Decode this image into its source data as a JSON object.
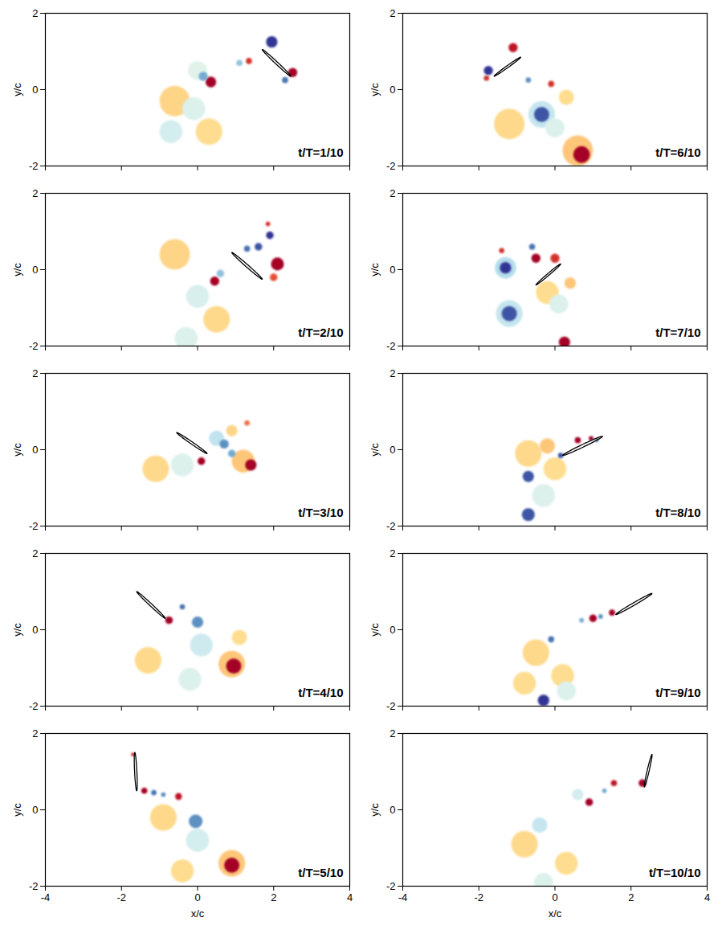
{
  "chart_data": [
    {
      "type": "vorticity",
      "title": "t/T=1/10",
      "y_label": "y/c",
      "tick_labels": "y",
      "xlim": [
        -4,
        4
      ],
      "ylim": [
        -2,
        2
      ],
      "xticks": [
        -4,
        -2,
        0,
        2,
        4
      ],
      "yticks": [
        -2,
        0,
        2
      ],
      "vorticity_range": [
        -5,
        5
      ],
      "airfoil": {
        "x": [
          1.7,
          2.45
        ],
        "y": [
          1.05,
          0.35
        ]
      },
      "vortices": {
        "x": [
          -0.6,
          -0.7,
          0.3,
          -0.1,
          0.0,
          0.15,
          0.35,
          1.1,
          1.35,
          1.95,
          2.5,
          2.3
        ],
        "y": [
          -0.3,
          -1.1,
          -1.1,
          -0.5,
          0.5,
          0.35,
          0.2,
          0.7,
          0.75,
          1.25,
          0.45,
          0.25
        ],
        "radius": [
          0.4,
          0.3,
          0.35,
          0.3,
          0.25,
          0.12,
          0.14,
          0.08,
          0.08,
          0.15,
          0.12,
          0.08
        ],
        "vorticity": [
          1.2,
          -1.2,
          1.0,
          -1.0,
          -0.9,
          -3.0,
          5,
          -2.5,
          4,
          -5,
          5,
          -4
        ]
      }
    },
    {
      "type": "vorticity",
      "title": "t/T=2/10",
      "y_label": "y/c",
      "tick_labels": "y",
      "xlim": [
        -4,
        4
      ],
      "ylim": [
        -2,
        2
      ],
      "xticks": [
        -4,
        -2,
        0,
        2,
        4
      ],
      "yticks": [
        -2,
        0,
        2
      ],
      "vorticity_range": [
        -5,
        5
      ],
      "airfoil": {
        "x": [
          0.9,
          1.7
        ],
        "y": [
          0.45,
          -0.25
        ]
      },
      "vortices": {
        "x": [
          -0.6,
          0.5,
          0.0,
          -0.3,
          0.6,
          0.45,
          1.6,
          1.9,
          1.85,
          2.0,
          2.1,
          1.3
        ],
        "y": [
          0.4,
          -1.3,
          -0.7,
          -1.8,
          -0.1,
          -0.3,
          0.6,
          0.9,
          1.2,
          -0.2,
          0.15,
          0.55
        ],
        "radius": [
          0.4,
          0.35,
          0.3,
          0.3,
          0.1,
          0.12,
          0.1,
          0.1,
          0.06,
          0.1,
          0.17,
          0.08
        ],
        "vorticity": [
          1.2,
          1.1,
          -1.1,
          -1.0,
          -2.5,
          5,
          -4.5,
          -5,
          4,
          3.5,
          5,
          -4
        ]
      }
    },
    {
      "type": "vorticity",
      "title": "t/T=3/10",
      "y_label": "y/c",
      "tick_labels": "y",
      "xlim": [
        -4,
        4
      ],
      "ylim": [
        -2,
        2
      ],
      "xticks": [
        -4,
        -2,
        0,
        2,
        4
      ],
      "yticks": [
        -2,
        0,
        2
      ],
      "vorticity_range": [
        -5,
        5
      ],
      "airfoil": {
        "x": [
          -0.55,
          0.25
        ],
        "y": [
          0.45,
          -0.1
        ]
      },
      "vortices": {
        "x": [
          -1.1,
          -0.4,
          1.2,
          0.5,
          0.9,
          0.1,
          0.7,
          0.9,
          1.4,
          1.3
        ],
        "y": [
          -0.5,
          -0.4,
          -0.3,
          0.3,
          0.5,
          -0.3,
          0.15,
          -0.1,
          -0.4,
          0.7
        ],
        "radius": [
          0.35,
          0.3,
          0.3,
          0.2,
          0.15,
          0.1,
          0.12,
          0.1,
          0.15,
          0.07
        ],
        "vorticity": [
          1.1,
          -1.0,
          1.5,
          -1.6,
          1.2,
          5,
          -3.5,
          -3,
          5,
          3
        ]
      }
    },
    {
      "type": "vorticity",
      "title": "t/T=4/10",
      "y_label": "y/c",
      "tick_labels": "y",
      "xlim": [
        -4,
        4
      ],
      "ylim": [
        -2,
        2
      ],
      "xticks": [
        -4,
        -2,
        0,
        2,
        4
      ],
      "yticks": [
        -2,
        0,
        2
      ],
      "vorticity_range": [
        -5,
        5
      ],
      "airfoil": {
        "x": [
          -1.6,
          -0.85
        ],
        "y": [
          1.0,
          0.3
        ]
      },
      "vortices": {
        "x": [
          -1.3,
          -0.2,
          0.1,
          0.9,
          1.1,
          -0.75,
          -0.4,
          0.0,
          0.95
        ],
        "y": [
          -0.8,
          -1.3,
          -0.4,
          -0.9,
          -0.2,
          0.25,
          0.6,
          0.2,
          -0.95
        ],
        "radius": [
          0.35,
          0.3,
          0.3,
          0.35,
          0.2,
          0.1,
          0.07,
          0.15,
          0.2
        ],
        "vorticity": [
          1.1,
          -1.0,
          -1.3,
          1.5,
          1.0,
          5,
          -4,
          -3.5,
          5
        ]
      }
    },
    {
      "type": "vorticity",
      "title": "t/T=5/10",
      "x_label": "x/c",
      "y_label": "y/c",
      "xlim": [
        -4,
        4
      ],
      "ylim": [
        -2,
        2
      ],
      "xticks": [
        -4,
        -2,
        0,
        2,
        4
      ],
      "yticks": [
        -2,
        0,
        2
      ],
      "vorticity_range": [
        -5,
        5
      ],
      "airfoil": {
        "x": [
          -1.65,
          -1.6
        ],
        "y": [
          1.5,
          0.5
        ]
      },
      "vortices": {
        "x": [
          -0.9,
          0,
          0.9,
          -0.4,
          -1.7,
          -1.4,
          -1.15,
          -0.9,
          -0.5,
          -0.05,
          0.9
        ],
        "y": [
          -0.2,
          -0.8,
          -1.4,
          -1.6,
          1.45,
          0.5,
          0.45,
          0.4,
          0.35,
          -0.3,
          -1.45
        ],
        "radius": [
          0.35,
          0.3,
          0.35,
          0.3,
          0.05,
          0.08,
          0.07,
          0.06,
          0.09,
          0.18,
          0.2
        ],
        "vorticity": [
          1.1,
          -1.2,
          1.5,
          1.0,
          4,
          5,
          -4,
          -3.5,
          4.5,
          -3.5,
          5
        ]
      }
    },
    {
      "type": "vorticity",
      "title": "t/T=6/10",
      "y_label": "y/c",
      "tick_labels": "y",
      "xlim": [
        -4,
        4
      ],
      "ylim": [
        -2,
        2
      ],
      "xticks": [
        -4,
        -2,
        0,
        2,
        4
      ],
      "yticks": [
        -2,
        0,
        2
      ],
      "vorticity_range": [
        -5,
        5
      ],
      "airfoil": {
        "x": [
          -1.6,
          -0.9
        ],
        "y": [
          0.35,
          0.85
        ]
      },
      "vortices": {
        "x": [
          -1.2,
          0.6,
          -0.35,
          0.0,
          0.3,
          -1.8,
          -1.75,
          -1.1,
          -0.7,
          -0.1,
          -0.35,
          0.7
        ],
        "y": [
          -0.9,
          -1.6,
          -0.65,
          -1.0,
          -0.2,
          0.3,
          0.5,
          1.1,
          0.25,
          0.15,
          -0.65,
          -1.7
        ],
        "radius": [
          0.4,
          0.4,
          0.35,
          0.25,
          0.2,
          0.07,
          0.12,
          0.12,
          0.07,
          0.08,
          0.2,
          0.22
        ],
        "vorticity": [
          1.1,
          1.5,
          -1.5,
          -1.0,
          1.0,
          4,
          -5,
          4.5,
          -3.5,
          4,
          -4.5,
          5
        ]
      }
    },
    {
      "type": "vorticity",
      "title": "t/T=7/10",
      "y_label": "y/c",
      "tick_labels": "y",
      "xlim": [
        -4,
        4
      ],
      "ylim": [
        -2,
        2
      ],
      "xticks": [
        -4,
        -2,
        0,
        2,
        4
      ],
      "yticks": [
        -2,
        0,
        2
      ],
      "vorticity_range": [
        -5,
        5
      ],
      "airfoil": {
        "x": [
          -0.5,
          0.15
        ],
        "y": [
          -0.4,
          0.15
        ]
      },
      "vortices": {
        "x": [
          -0.2,
          0.1,
          -1.3,
          -1.2,
          0.4,
          -1.3,
          -1.4,
          -0.6,
          -0.5,
          0.0,
          -1.2,
          0.25
        ],
        "y": [
          -0.6,
          -0.9,
          0.05,
          -1.15,
          -0.35,
          0.05,
          0.5,
          0.6,
          0.3,
          0.3,
          -1.15,
          -1.9
        ],
        "radius": [
          0.3,
          0.25,
          0.28,
          0.35,
          0.15,
          0.15,
          0.07,
          0.08,
          0.12,
          0.12,
          0.2,
          0.15
        ],
        "vorticity": [
          1.0,
          -1.0,
          -1.8,
          -1.5,
          1.5,
          -5,
          4,
          -4,
          5,
          4,
          -4.5,
          5
        ]
      }
    },
    {
      "type": "vorticity",
      "title": "t/T=8/10",
      "y_label": "y/c",
      "tick_labels": "y",
      "xlim": [
        -4,
        4
      ],
      "ylim": [
        -2,
        2
      ],
      "xticks": [
        -4,
        -2,
        0,
        2,
        4
      ],
      "yticks": [
        -2,
        0,
        2
      ],
      "vorticity_range": [
        -5,
        5
      ],
      "airfoil": {
        "x": [
          0.2,
          1.25
        ],
        "y": [
          -0.15,
          0.35
        ]
      },
      "vortices": {
        "x": [
          -0.7,
          0.0,
          -0.3,
          -0.2,
          -0.7,
          -0.7,
          0.15,
          0.6,
          0.95,
          1.1
        ],
        "y": [
          -0.1,
          -0.5,
          -1.2,
          0.1,
          -0.7,
          -1.7,
          -0.15,
          0.25,
          0.3,
          0.25
        ],
        "radius": [
          0.35,
          0.3,
          0.3,
          0.2,
          0.15,
          0.17,
          0.07,
          0.08,
          0.06,
          0.05
        ],
        "vorticity": [
          1.1,
          1.0,
          -1.0,
          1.5,
          -4.5,
          -4.5,
          -4.5,
          5,
          5,
          -4
        ]
      }
    },
    {
      "type": "vorticity",
      "title": "t/T=9/10",
      "y_label": "y/c",
      "tick_labels": "y",
      "xlim": [
        -4,
        4
      ],
      "ylim": [
        -2,
        2
      ],
      "xticks": [
        -4,
        -2,
        0,
        2,
        4
      ],
      "yticks": [
        -2,
        0,
        2
      ],
      "vorticity_range": [
        -5,
        5
      ],
      "airfoil": {
        "x": [
          1.6,
          2.55
        ],
        "y": [
          0.4,
          0.95
        ]
      },
      "vortices": {
        "x": [
          -0.5,
          0.2,
          0.3,
          -0.8,
          0.7,
          1.0,
          1.2,
          1.5,
          -0.1,
          -0.3
        ],
        "y": [
          -0.6,
          -1.2,
          -1.6,
          -1.4,
          0.25,
          0.3,
          0.35,
          0.45,
          -0.25,
          -1.85
        ],
        "radius": [
          0.35,
          0.3,
          0.25,
          0.3,
          0.06,
          0.1,
          0.06,
          0.08,
          0.08,
          0.15
        ],
        "vorticity": [
          1.1,
          1.0,
          -1.0,
          1.0,
          -3,
          5,
          -3.5,
          5,
          -4,
          -5
        ]
      }
    },
    {
      "type": "vorticity",
      "title": "t/T=10/10",
      "x_label": "x/c",
      "y_label": "y/c",
      "xlim": [
        -4,
        4
      ],
      "ylim": [
        -2,
        2
      ],
      "xticks": [
        -4,
        -2,
        0,
        2,
        4
      ],
      "yticks": [
        -2,
        0,
        2
      ],
      "vorticity_range": [
        -5,
        5
      ],
      "airfoil": {
        "x": [
          2.35,
          2.55
        ],
        "y": [
          0.6,
          1.45
        ]
      },
      "vortices": {
        "x": [
          -0.8,
          0.3,
          -0.3,
          -0.4,
          0.6,
          0.9,
          1.3,
          1.55,
          2.3
        ],
        "y": [
          -0.9,
          -1.4,
          -1.9,
          -0.4,
          0.4,
          0.2,
          0.5,
          0.7,
          0.7
        ],
        "radius": [
          0.35,
          0.3,
          0.25,
          0.2,
          0.15,
          0.1,
          0.06,
          0.08,
          0.1
        ],
        "vorticity": [
          1.1,
          1.0,
          -1.0,
          -1.5,
          -1.2,
          5,
          -3,
          4.5,
          5
        ]
      }
    }
  ]
}
